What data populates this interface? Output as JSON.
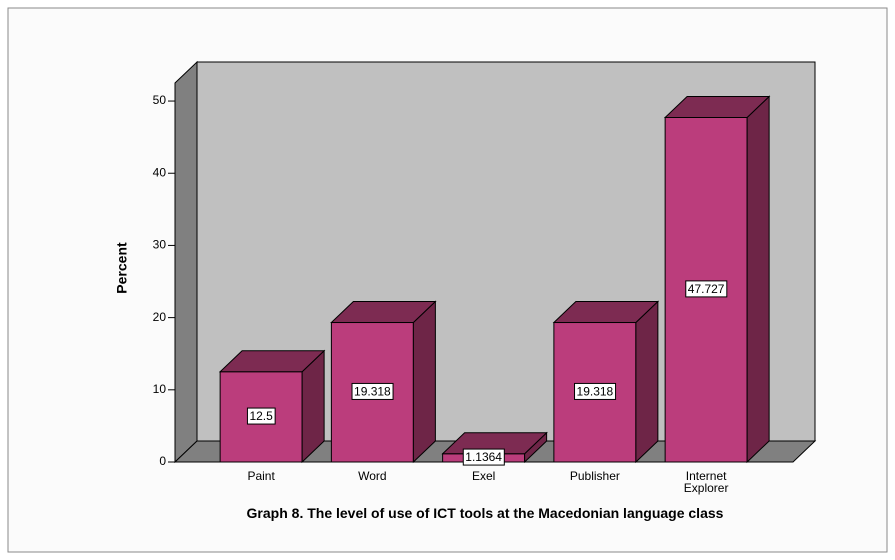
{
  "chart_data": {
    "type": "bar3d",
    "title": "Graph 8. The level of use of ICT tools at the Macedonian language class",
    "y_label": "Percent",
    "categories": [
      "Paint",
      "Word",
      "Exel",
      "Publisher",
      "Internet Explorer"
    ],
    "values": [
      12.5,
      19.318,
      1.1364,
      19.318,
      47.727
    ],
    "color": "#bb3d7c",
    "ylim": [
      0,
      52.5
    ],
    "yticks": [
      0,
      10,
      20,
      30,
      40,
      50
    ]
  }
}
